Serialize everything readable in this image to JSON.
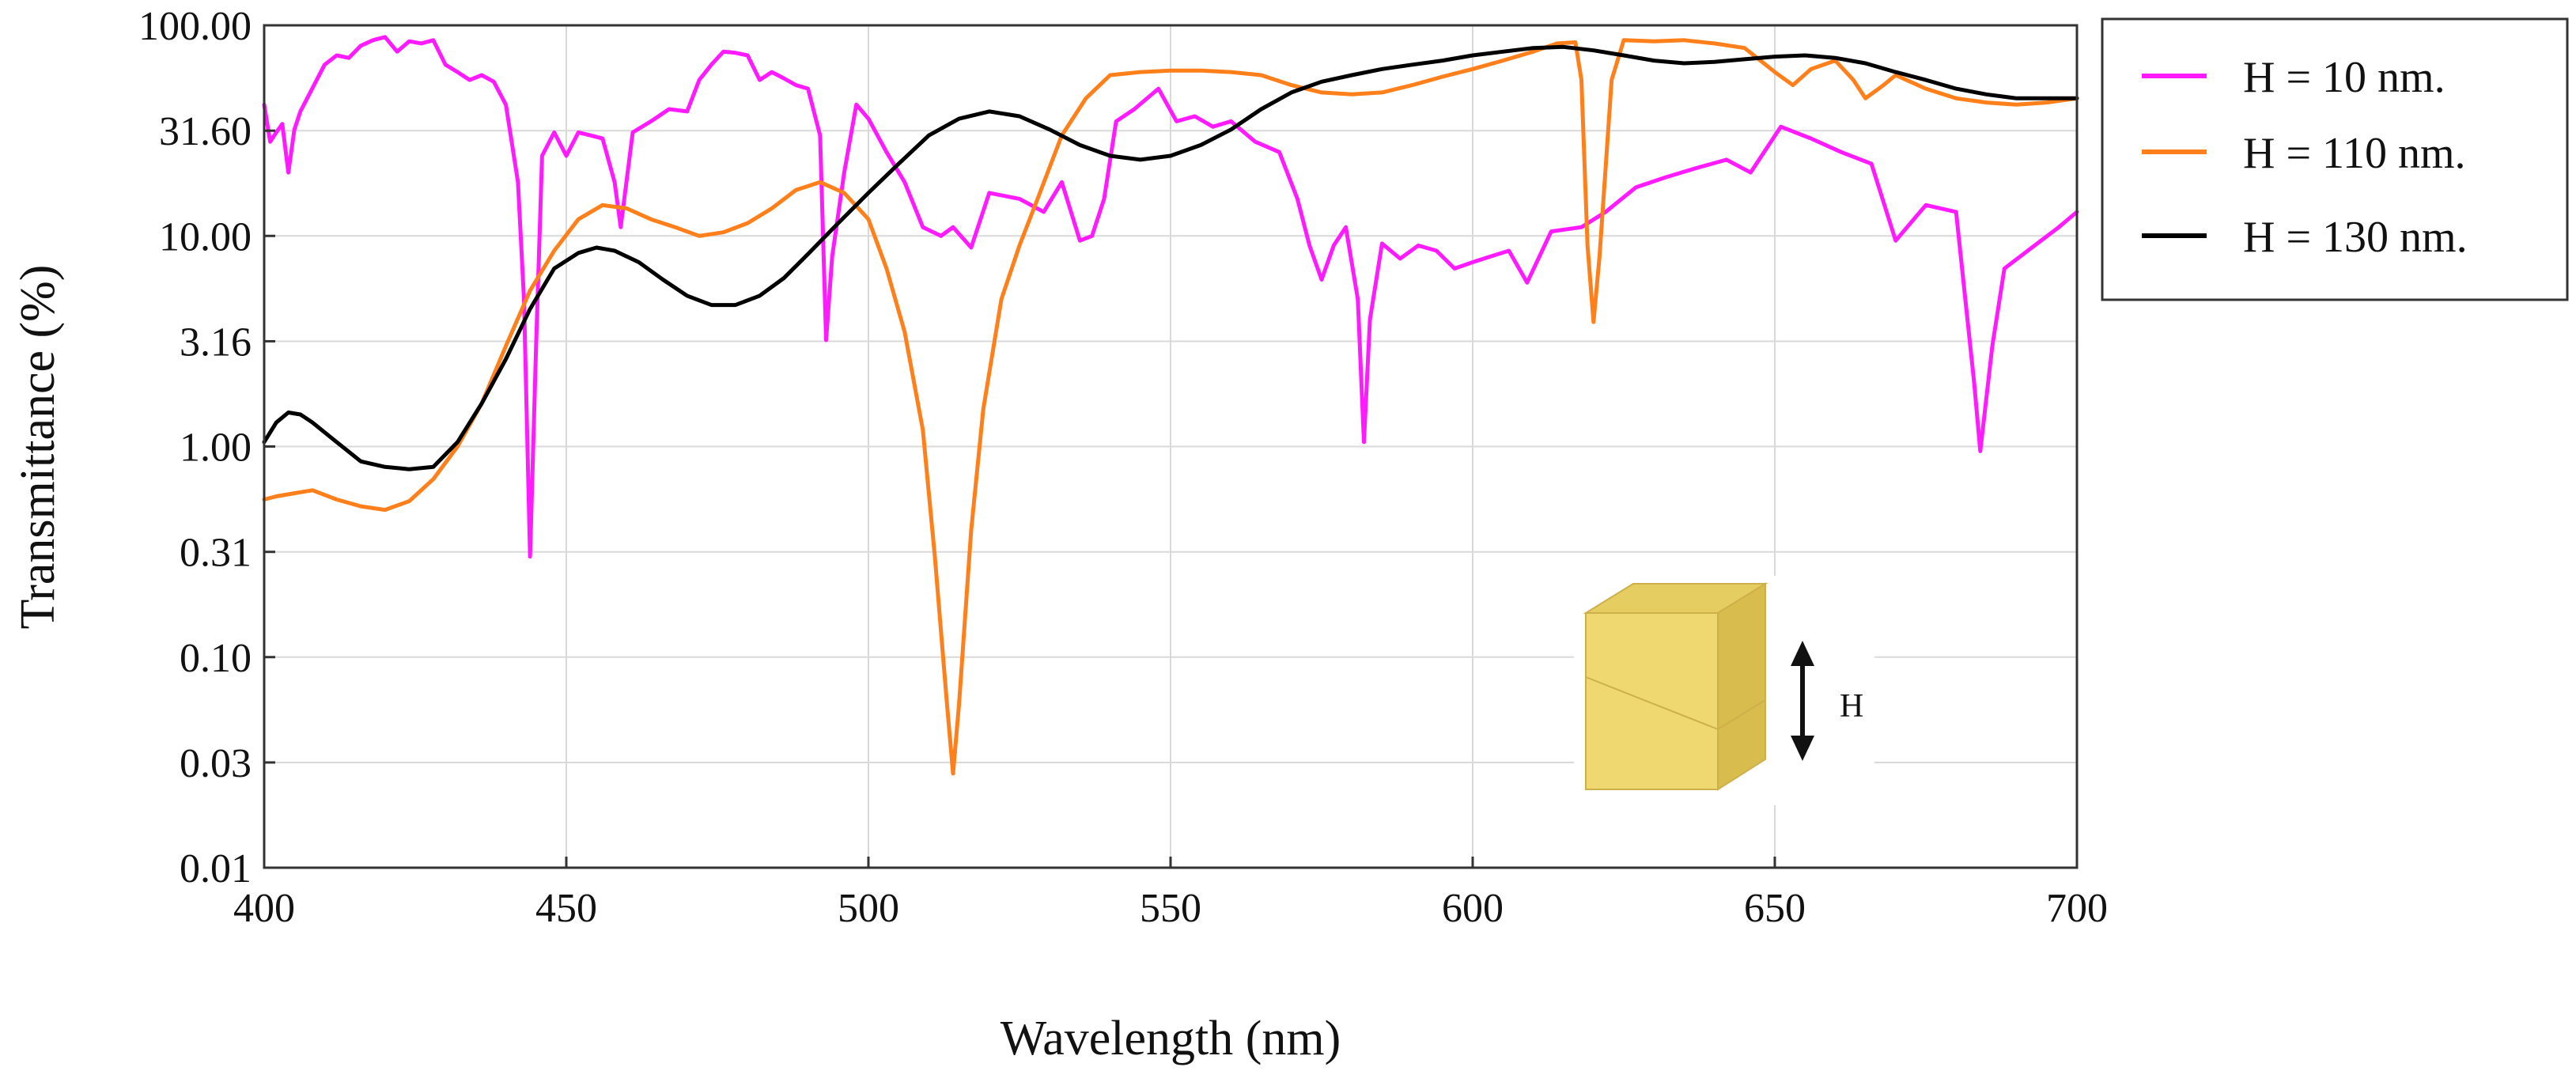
{
  "chart_data": {
    "type": "line",
    "title": "",
    "xlabel": "Wavelength (nm)",
    "ylabel": "Transmittance (%)",
    "xlim": [
      400,
      700
    ],
    "ylim": [
      0.01,
      100
    ],
    "yscale": "log",
    "grid": true,
    "legend_position": "outside-top-right",
    "x_ticks": [
      400,
      450,
      500,
      550,
      600,
      650,
      700
    ],
    "x_tick_labels": [
      "400",
      "450",
      "500",
      "550",
      "600",
      "650",
      "700"
    ],
    "y_ticks": [
      0.01,
      0.0316,
      0.1,
      0.316,
      1,
      3.16,
      10,
      31.6,
      100
    ],
    "y_tick_labels": [
      "0.01",
      "0.03",
      "0.10",
      "0.31",
      "1.00",
      "3.16",
      "10.00",
      "31.60",
      "100.00"
    ],
    "series": [
      {
        "name": "H = 10 nm.",
        "color": "#ff1aff",
        "points": [
          [
            400,
            42
          ],
          [
            401,
            28
          ],
          [
            402,
            31
          ],
          [
            403,
            34
          ],
          [
            404,
            20
          ],
          [
            405,
            32
          ],
          [
            406,
            39
          ],
          [
            410,
            65
          ],
          [
            412,
            72
          ],
          [
            414,
            70
          ],
          [
            416,
            80
          ],
          [
            418,
            85
          ],
          [
            420,
            88
          ],
          [
            422,
            75
          ],
          [
            424,
            84
          ],
          [
            426,
            82
          ],
          [
            428,
            85
          ],
          [
            430,
            65
          ],
          [
            432,
            60
          ],
          [
            434,
            55
          ],
          [
            436,
            58
          ],
          [
            438,
            54
          ],
          [
            440,
            42
          ],
          [
            442,
            18
          ],
          [
            443,
            5
          ],
          [
            444,
            0.3
          ],
          [
            445,
            3
          ],
          [
            446,
            24
          ],
          [
            448,
            31
          ],
          [
            450,
            24
          ],
          [
            452,
            31
          ],
          [
            454,
            30
          ],
          [
            456,
            29
          ],
          [
            458,
            18
          ],
          [
            459,
            11
          ],
          [
            461,
            31
          ],
          [
            464,
            35
          ],
          [
            467,
            40
          ],
          [
            470,
            39
          ],
          [
            472,
            55
          ],
          [
            474,
            65
          ],
          [
            476,
            75
          ],
          [
            478,
            74
          ],
          [
            480,
            72
          ],
          [
            482,
            55
          ],
          [
            484,
            60
          ],
          [
            486,
            56
          ],
          [
            488,
            52
          ],
          [
            490,
            50
          ],
          [
            492,
            30
          ],
          [
            493,
            3.2
          ],
          [
            494,
            8
          ],
          [
            496,
            20
          ],
          [
            498,
            42
          ],
          [
            500,
            36
          ],
          [
            503,
            25
          ],
          [
            506,
            18
          ],
          [
            509,
            11
          ],
          [
            512,
            10
          ],
          [
            514,
            11
          ],
          [
            517,
            8.8
          ],
          [
            520,
            16
          ],
          [
            525,
            15
          ],
          [
            529,
            13
          ],
          [
            532,
            18
          ],
          [
            535,
            9.5
          ],
          [
            537,
            10
          ],
          [
            539,
            15
          ],
          [
            541,
            35
          ],
          [
            544,
            40
          ],
          [
            548,
            50
          ],
          [
            551,
            35
          ],
          [
            554,
            37
          ],
          [
            557,
            33
          ],
          [
            560,
            35
          ],
          [
            564,
            28
          ],
          [
            568,
            25
          ],
          [
            571,
            15
          ],
          [
            573,
            9
          ],
          [
            575,
            6.2
          ],
          [
            577,
            9
          ],
          [
            579,
            11
          ],
          [
            581,
            5
          ],
          [
            582,
            1.05
          ],
          [
            583,
            4
          ],
          [
            585,
            9.2
          ],
          [
            588,
            7.8
          ],
          [
            591,
            9
          ],
          [
            594,
            8.5
          ],
          [
            597,
            7
          ],
          [
            600,
            7.5
          ],
          [
            603,
            8
          ],
          [
            606,
            8.5
          ],
          [
            609,
            6
          ],
          [
            613,
            10.5
          ],
          [
            618,
            11
          ],
          [
            622,
            13
          ],
          [
            627,
            17
          ],
          [
            632,
            19
          ],
          [
            637,
            21
          ],
          [
            642,
            23
          ],
          [
            646,
            20
          ],
          [
            651,
            33
          ],
          [
            656,
            29
          ],
          [
            661,
            25
          ],
          [
            666,
            22
          ],
          [
            670,
            9.5
          ],
          [
            675,
            14
          ],
          [
            680,
            13
          ],
          [
            683,
            2
          ],
          [
            684,
            0.95
          ],
          [
            686,
            3
          ],
          [
            688,
            7
          ],
          [
            693,
            9
          ],
          [
            697,
            11
          ],
          [
            700,
            13
          ]
        ]
      },
      {
        "name": "H = 110 nm.",
        "color": "#ff7f1a",
        "points": [
          [
            400,
            0.56
          ],
          [
            402,
            0.58
          ],
          [
            405,
            0.6
          ],
          [
            408,
            0.62
          ],
          [
            412,
            0.56
          ],
          [
            416,
            0.52
          ],
          [
            420,
            0.5
          ],
          [
            424,
            0.55
          ],
          [
            428,
            0.7
          ],
          [
            432,
            1.0
          ],
          [
            436,
            1.6
          ],
          [
            440,
            3
          ],
          [
            444,
            5.5
          ],
          [
            448,
            8.5
          ],
          [
            452,
            12
          ],
          [
            456,
            14
          ],
          [
            460,
            13.5
          ],
          [
            464,
            12
          ],
          [
            468,
            11
          ],
          [
            472,
            10
          ],
          [
            476,
            10.4
          ],
          [
            480,
            11.5
          ],
          [
            484,
            13.5
          ],
          [
            488,
            16.5
          ],
          [
            492,
            18
          ],
          [
            496,
            16
          ],
          [
            500,
            12
          ],
          [
            503,
            7
          ],
          [
            506,
            3.5
          ],
          [
            509,
            1.2
          ],
          [
            511,
            0.3
          ],
          [
            513,
            0.06
          ],
          [
            514,
            0.028
          ],
          [
            515,
            0.06
          ],
          [
            517,
            0.4
          ],
          [
            519,
            1.5
          ],
          [
            522,
            5
          ],
          [
            525,
            9
          ],
          [
            528,
            15
          ],
          [
            532,
            30
          ],
          [
            536,
            45
          ],
          [
            540,
            58
          ],
          [
            545,
            60
          ],
          [
            550,
            61
          ],
          [
            555,
            61
          ],
          [
            560,
            60
          ],
          [
            565,
            58
          ],
          [
            570,
            52
          ],
          [
            575,
            48
          ],
          [
            580,
            47
          ],
          [
            585,
            48
          ],
          [
            590,
            52
          ],
          [
            595,
            57
          ],
          [
            600,
            62
          ],
          [
            605,
            68
          ],
          [
            610,
            75
          ],
          [
            614,
            82
          ],
          [
            617,
            83
          ],
          [
            618,
            55
          ],
          [
            619,
            9
          ],
          [
            620,
            3.9
          ],
          [
            621,
            8
          ],
          [
            623,
            55
          ],
          [
            625,
            85
          ],
          [
            630,
            84
          ],
          [
            635,
            85
          ],
          [
            640,
            82
          ],
          [
            645,
            78
          ],
          [
            650,
            60
          ],
          [
            653,
            52
          ],
          [
            656,
            62
          ],
          [
            660,
            68
          ],
          [
            663,
            55
          ],
          [
            665,
            45
          ],
          [
            668,
            52
          ],
          [
            670,
            58
          ],
          [
            675,
            50
          ],
          [
            680,
            45
          ],
          [
            685,
            43
          ],
          [
            690,
            42
          ],
          [
            695,
            43
          ],
          [
            700,
            45
          ]
        ]
      },
      {
        "name": "H = 130 nm.",
        "color": "#000000",
        "points": [
          [
            400,
            1.05
          ],
          [
            402,
            1.3
          ],
          [
            404,
            1.45
          ],
          [
            406,
            1.42
          ],
          [
            408,
            1.3
          ],
          [
            412,
            1.05
          ],
          [
            416,
            0.85
          ],
          [
            420,
            0.8
          ],
          [
            424,
            0.78
          ],
          [
            428,
            0.8
          ],
          [
            432,
            1.05
          ],
          [
            436,
            1.6
          ],
          [
            440,
            2.6
          ],
          [
            444,
            4.5
          ],
          [
            448,
            7
          ],
          [
            452,
            8.3
          ],
          [
            455,
            8.8
          ],
          [
            458,
            8.5
          ],
          [
            462,
            7.5
          ],
          [
            466,
            6.2
          ],
          [
            470,
            5.2
          ],
          [
            474,
            4.7
          ],
          [
            478,
            4.7
          ],
          [
            482,
            5.2
          ],
          [
            486,
            6.3
          ],
          [
            490,
            8.2
          ],
          [
            495,
            11.5
          ],
          [
            500,
            16
          ],
          [
            505,
            22
          ],
          [
            510,
            30
          ],
          [
            515,
            36
          ],
          [
            520,
            39
          ],
          [
            525,
            37
          ],
          [
            530,
            32
          ],
          [
            535,
            27
          ],
          [
            540,
            24
          ],
          [
            545,
            23
          ],
          [
            550,
            24
          ],
          [
            555,
            27
          ],
          [
            560,
            32
          ],
          [
            565,
            40
          ],
          [
            570,
            48
          ],
          [
            575,
            54
          ],
          [
            580,
            58
          ],
          [
            585,
            62
          ],
          [
            590,
            65
          ],
          [
            595,
            68
          ],
          [
            600,
            72
          ],
          [
            605,
            75
          ],
          [
            610,
            78
          ],
          [
            615,
            79
          ],
          [
            620,
            76
          ],
          [
            625,
            72
          ],
          [
            630,
            68
          ],
          [
            635,
            66
          ],
          [
            640,
            67
          ],
          [
            645,
            69
          ],
          [
            650,
            71
          ],
          [
            655,
            72
          ],
          [
            660,
            70
          ],
          [
            665,
            66
          ],
          [
            670,
            60
          ],
          [
            675,
            55
          ],
          [
            680,
            50
          ],
          [
            685,
            47
          ],
          [
            690,
            45
          ],
          [
            695,
            45
          ],
          [
            700,
            45
          ]
        ]
      }
    ],
    "inset": {
      "label": "H",
      "box_top": "#e5cd62",
      "box_front": "#f0d870",
      "box_side": "#d8bd4e",
      "arrow_color": "#111111"
    }
  }
}
